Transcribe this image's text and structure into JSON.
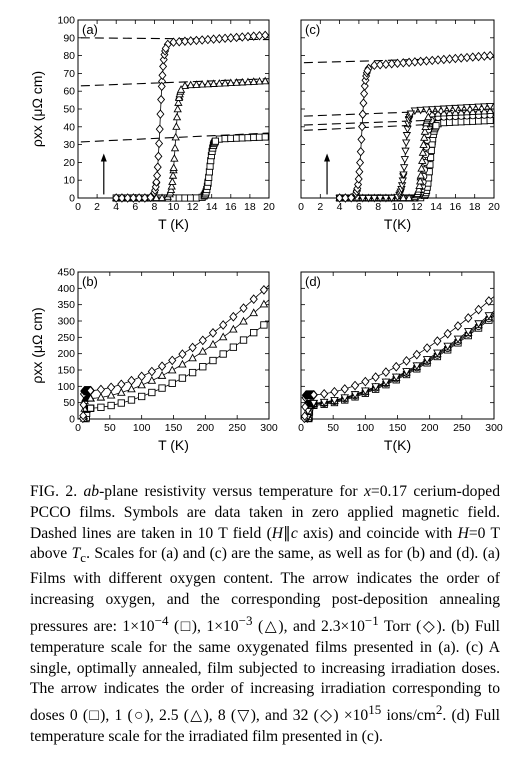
{
  "chart_data": [
    {
      "type": "scatter",
      "panel_label": "(a)",
      "xlabel": "T (K)",
      "ylabel": "ρxx (μΩ cm)",
      "xlim": [
        0,
        20
      ],
      "ylim": [
        0,
        100
      ],
      "xticks": [
        "0",
        "2",
        "4",
        "6",
        "8",
        "10",
        "12",
        "14",
        "16",
        "18",
        "20"
      ],
      "yticks": [
        "0",
        "10",
        "20",
        "30",
        "40",
        "50",
        "60",
        "70",
        "80",
        "90",
        "100"
      ],
      "series": [
        {
          "marker": "square",
          "tc": 13.8,
          "rho_n": 33,
          "slope": 0.22
        },
        {
          "marker": "triangle",
          "tc": 10.2,
          "rho_n": 63,
          "slope": 0.28
        },
        {
          "marker": "diamond",
          "tc": 8.6,
          "rho_n": 87,
          "slope": 0.4
        }
      ],
      "dashed_lines": [
        {
          "y0": 31.5,
          "y20": 36.5
        },
        {
          "y0": 63,
          "y20": 67
        },
        {
          "y0": 90,
          "y20": 89
        }
      ],
      "arrow": {
        "x": 2.7,
        "y_from": 2,
        "y_to": 25
      }
    },
    {
      "type": "scatter",
      "panel_label": "(c)",
      "xlabel": "T(K)",
      "ylabel": "",
      "xlim": [
        0,
        20
      ],
      "ylim": [
        0,
        100
      ],
      "xticks": [
        "0",
        "2",
        "4",
        "6",
        "8",
        "10",
        "12",
        "14",
        "16",
        "18",
        "20"
      ],
      "yticks": [],
      "series": [
        {
          "marker": "square",
          "tc": 13.4,
          "rho_n": 42,
          "slope": 0.25
        },
        {
          "marker": "circle",
          "tc": 12.9,
          "rho_n": 45,
          "slope": 0.25
        },
        {
          "marker": "triangle",
          "tc": 12.6,
          "rho_n": 47,
          "slope": 0.27
        },
        {
          "marker": "inverted-triangle",
          "tc": 10.8,
          "rho_n": 49,
          "slope": 0.3
        },
        {
          "marker": "diamond",
          "tc": 6.3,
          "rho_n": 74,
          "slope": 0.45
        }
      ],
      "dashed_lines": [
        {
          "y0": 38,
          "y20": 43
        },
        {
          "y0": 41,
          "y20": 45
        },
        {
          "y0": 46,
          "y20": 50
        },
        {
          "y0": 76,
          "y20": 79
        }
      ],
      "arrow": {
        "x": 2.7,
        "y_from": 2,
        "y_to": 25
      }
    },
    {
      "type": "scatter",
      "panel_label": "(b)",
      "xlabel": "T (K)",
      "ylabel": "ρxx (μΩ cm)",
      "xlim": [
        0,
        300
      ],
      "ylim": [
        0,
        450
      ],
      "xticks": [
        "0",
        "50",
        "100",
        "150",
        "200",
        "250",
        "300"
      ],
      "yticks": [
        "0",
        "50",
        "100",
        "150",
        "200",
        "250",
        "300",
        "350",
        "400",
        "450"
      ],
      "series": [
        {
          "marker": "square",
          "rho_n": 33,
          "rho_300": 300,
          "tc": 13.8
        },
        {
          "marker": "triangle",
          "rho_n": 63,
          "rho_300": 365,
          "tc": 10.2
        },
        {
          "marker": "diamond",
          "rho_n": 87,
          "rho_300": 410,
          "tc": 8.6
        }
      ]
    },
    {
      "type": "scatter",
      "panel_label": "(d)",
      "xlabel": "T(K)",
      "ylabel": "",
      "xlim": [
        0,
        300
      ],
      "ylim": [
        0,
        450
      ],
      "xticks": [
        "0",
        "50",
        "100",
        "150",
        "200",
        "250",
        "300"
      ],
      "yticks": [],
      "series": [
        {
          "marker": "square",
          "rho_n": 42,
          "rho_300": 315,
          "tc": 13.4
        },
        {
          "marker": "circle",
          "rho_n": 45,
          "rho_300": 320,
          "tc": 12.9
        },
        {
          "marker": "triangle",
          "rho_n": 47,
          "rho_300": 325,
          "tc": 12.6
        },
        {
          "marker": "inverted-triangle",
          "rho_n": 49,
          "rho_300": 330,
          "tc": 10.8
        },
        {
          "marker": "diamond",
          "rho_n": 74,
          "rho_300": 375,
          "tc": 6.3
        }
      ]
    }
  ],
  "caption": {
    "s1": "FIG. 2.",
    "s2": "ab",
    "s3": "-plane resistivity versus temperature for",
    "s4": "x",
    "s5": "=0.17 cerium-doped PCCO films. Symbols are data taken in zero applied magnetic field. Dashed lines are taken in 10 T field (",
    "s6": "H",
    "s7": "∥",
    "s8": "c",
    "s9": "axis) and coincide with",
    "s10": "H",
    "s11": "=0 T above",
    "s12": "T",
    "s13": "c",
    "s14": ". Scales for (a) and (c) are the same, as well as for (b) and (d). (a) Films with different oxygen content. The arrow indicates the order of increasing oxygen, and the corresponding post-deposition annealing pressures are: 1×10",
    "s15": "−4",
    "s16": "(□), 1×10",
    "s17": "−3",
    "s18": "(△), and 2.3×10",
    "s19": "−1",
    "s20": "Torr (◇). (b) Full temperature scale for the same oxygenated films presented in (a). (c) A single, optimally annealed, film subjected to increasing irradiation doses. The arrow indicates the order of increasing irradiation corresponding to doses 0 (□), 1 (○), 2.5 (△), 8 (▽), and 32 (◇) ×10",
    "s21": "15",
    "s22": "ions/cm",
    "s23": "2",
    "s24": ". (d) Full temperature scale for the irradiated film presented in (c)."
  }
}
